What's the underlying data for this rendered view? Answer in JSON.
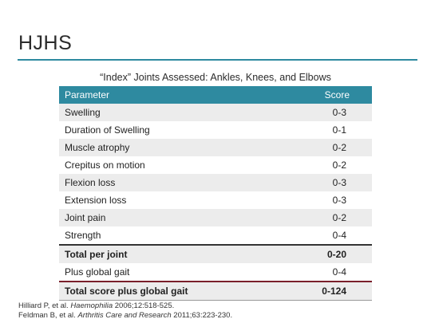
{
  "slide": {
    "title": "HJHS",
    "caption": "“Index” Joints  Assessed: Ankles, Knees, and Elbows"
  },
  "table": {
    "headers": [
      "Parameter",
      "Score"
    ],
    "rows": [
      {
        "parameter": "Swelling",
        "score": "0-3"
      },
      {
        "parameter": "Duration of Swelling",
        "score": "0-1"
      },
      {
        "parameter": "Muscle atrophy",
        "score": "0-2"
      },
      {
        "parameter": "Crepitus on motion",
        "score": "0-2"
      },
      {
        "parameter": "Flexion loss",
        "score": "0-3"
      },
      {
        "parameter": "Extension loss",
        "score": "0-3"
      },
      {
        "parameter": "Joint pain",
        "score": "0-2"
      },
      {
        "parameter": "Strength",
        "score": "0-4"
      },
      {
        "parameter": "Total per joint",
        "score": "0-20"
      },
      {
        "parameter": "Plus global gait",
        "score": "0-4"
      },
      {
        "parameter": "Total score plus global gait",
        "score": "0-124"
      }
    ]
  },
  "references": [
    {
      "pre": "Hilliard P, et al. ",
      "journal": "Haemophilia",
      "post": " 2006;12:518-525."
    },
    {
      "pre": "Feldman B, et al. ",
      "journal": "Arthritis Care and Research",
      "post": " 2011;63:223-230."
    }
  ],
  "colors": {
    "header_bg": "#2e8aa0",
    "row_shade": "#ececec",
    "final_rule": "#7a1f2b"
  }
}
